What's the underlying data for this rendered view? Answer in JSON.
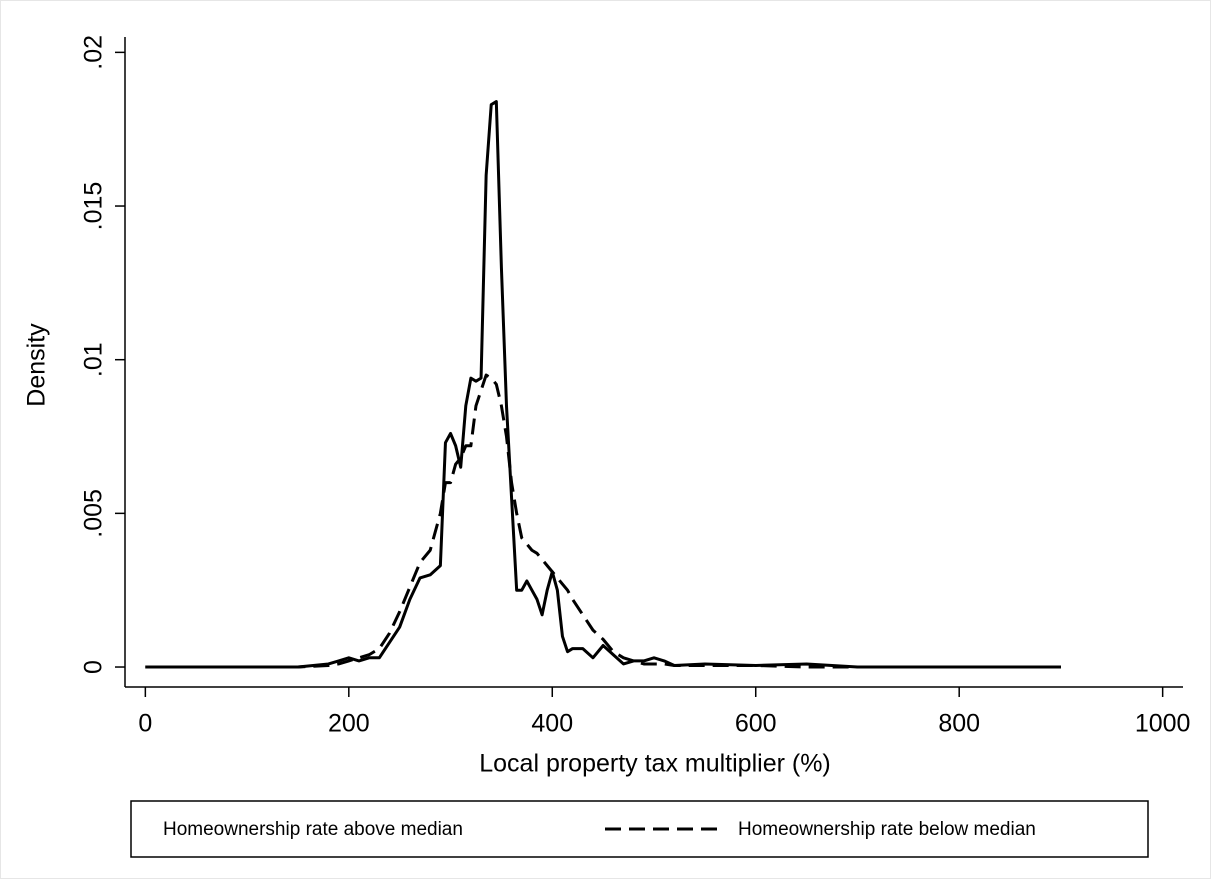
{
  "chart_data": {
    "type": "line",
    "x_label": "Local property tax multiplier (%)",
    "y_label": "Density",
    "x": [
      0,
      100,
      150,
      180,
      190,
      200,
      210,
      220,
      230,
      240,
      250,
      260,
      270,
      280,
      290,
      295,
      300,
      305,
      310,
      315,
      320,
      325,
      330,
      335,
      340,
      345,
      350,
      355,
      360,
      365,
      370,
      375,
      380,
      385,
      390,
      395,
      400,
      405,
      410,
      415,
      420,
      430,
      440,
      450,
      460,
      470,
      480,
      490,
      500,
      510,
      520,
      550,
      600,
      650,
      700,
      800,
      900
    ],
    "series": [
      {
        "name": "Homeownership rate above median",
        "color": "#000000",
        "line_style": "solid",
        "values": [
          0,
          0,
          0,
          0.0001,
          0.0002,
          0.0003,
          0.0002,
          0.0003,
          0.0003,
          0.0008,
          0.0013,
          0.0022,
          0.0029,
          0.003,
          0.0033,
          0.0073,
          0.0076,
          0.0072,
          0.0065,
          0.0085,
          0.0094,
          0.0093,
          0.0094,
          0.016,
          0.0183,
          0.0184,
          0.013,
          0.0085,
          0.0055,
          0.0025,
          0.0025,
          0.0028,
          0.0025,
          0.0022,
          0.0017,
          0.0025,
          0.0031,
          0.0025,
          0.001,
          0.0005,
          0.0006,
          0.0006,
          0.0003,
          0.0007,
          0.0004,
          0.0001,
          0.0002,
          0.0002,
          0.0003,
          0.0002,
          5e-05,
          0.0001,
          5e-05,
          0.0001,
          0,
          0,
          0
        ]
      },
      {
        "name": "Homeownership rate below median",
        "color": "#000000",
        "line_style": "dashed",
        "values": [
          0,
          0,
          0,
          5e-05,
          0.0001,
          0.0002,
          0.0003,
          0.0004,
          0.0006,
          0.0011,
          0.0018,
          0.0026,
          0.0034,
          0.0038,
          0.005,
          0.006,
          0.006,
          0.0066,
          0.0068,
          0.0072,
          0.0072,
          0.0085,
          0.009,
          0.0095,
          0.0094,
          0.0092,
          0.0085,
          0.0075,
          0.006,
          0.005,
          0.0042,
          0.004,
          0.0038,
          0.0037,
          0.0035,
          0.0033,
          0.0031,
          0.0029,
          0.0027,
          0.0025,
          0.0022,
          0.0017,
          0.0012,
          0.0009,
          0.0005,
          0.0003,
          0.0002,
          0.0001,
          0.0001,
          0.0001,
          5e-05,
          5e-05,
          5e-05,
          0,
          0,
          0,
          0
        ]
      }
    ],
    "xlim": [
      -20,
      1020
    ],
    "ylim": [
      -0.00065,
      0.0205
    ],
    "xticks": [
      0,
      200,
      400,
      600,
      800,
      1000
    ],
    "yticks": [
      0,
      {
        "value": 0.005,
        "label": ".005"
      },
      {
        "value": 0.01,
        "label": ".01"
      },
      {
        "value": 0.015,
        "label": ".015"
      },
      {
        "value": 0.02,
        "label": ".02"
      }
    ],
    "legend": "bottom"
  }
}
